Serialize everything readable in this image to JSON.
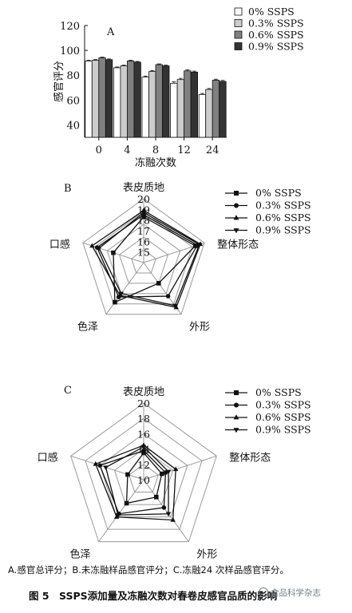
{
  "caption": "A.感官总评分；B.未冻融样品感官评分；C.冻融24 次样品感官评分。",
  "figure_title": "图 5　SSPS添加量及冻融次数对春卷皮感官品质的影响",
  "watermark": "食品科学杂志",
  "series_names": [
    "0% SSPS",
    "0.3% SSPS",
    "0.6% SSPS",
    "0.9% SSPS"
  ],
  "colors": {
    "s0": "#ffffff",
    "s1": "#cccccc",
    "s2": "#808080",
    "s3": "#333333",
    "stroke": "#111111",
    "grid": "#9a9a9a"
  },
  "chart_data": [
    {
      "panel": "A",
      "type": "bar",
      "xlabel": "冻融次数",
      "ylabel": "感官评分",
      "categories": [
        "0",
        "4",
        "8",
        "12",
        "24"
      ],
      "ylim": [
        30,
        120
      ],
      "yticks": [
        40,
        60,
        80,
        100,
        120
      ],
      "series": [
        {
          "name": "0% SSPS",
          "values": [
            91.5,
            86,
            78.5,
            73.5,
            64.5
          ],
          "errors": [
            0.6,
            0.6,
            0.8,
            1.2,
            0.8
          ]
        },
        {
          "name": "0.3% SSPS",
          "values": [
            92,
            87.5,
            83,
            76.5,
            68.5
          ],
          "errors": [
            0.6,
            0.6,
            0.8,
            1.0,
            0.8
          ]
        },
        {
          "name": "0.6% SSPS",
          "values": [
            94,
            91.5,
            88.5,
            83.5,
            76
          ],
          "errors": [
            0.6,
            0.6,
            0.6,
            0.8,
            0.8
          ]
        },
        {
          "name": "0.9% SSPS",
          "values": [
            92.5,
            90.5,
            87.5,
            82.5,
            75
          ],
          "errors": [
            0.6,
            0.6,
            0.6,
            0.8,
            0.8
          ]
        }
      ],
      "legend": "top-right"
    },
    {
      "panel": "B",
      "type": "radar",
      "axes": [
        "表皮质地",
        "整体形态",
        "外形",
        "色泽",
        "口感"
      ],
      "rmin": 14,
      "rmax": 20,
      "ticks": [
        15,
        16,
        17,
        18,
        19,
        20
      ],
      "series": [
        {
          "name": "0% SSPS",
          "marker": "square",
          "values": [
            18.3,
            19.1,
            16.4,
            18.6,
            17.0
          ]
        },
        {
          "name": "0.3% SSPS",
          "marker": "circle",
          "values": [
            18.5,
            19.3,
            17.9,
            18.0,
            18.6
          ]
        },
        {
          "name": "0.6% SSPS",
          "marker": "triangle-up",
          "values": [
            18.9,
            19.6,
            19.2,
            17.8,
            19.1
          ]
        },
        {
          "name": "0.9% SSPS",
          "marker": "triangle-down",
          "values": [
            18.7,
            19.5,
            19.0,
            17.6,
            18.4
          ]
        }
      ],
      "legend": "top-right"
    },
    {
      "panel": "C",
      "type": "radar",
      "axes": [
        "表皮质地",
        "整体形态",
        "外形",
        "色泽",
        "口感"
      ],
      "rmin": 10,
      "rmax": 20,
      "ticks": [
        10,
        12,
        14,
        16,
        18,
        20
      ],
      "series": [
        {
          "name": "0% SSPS",
          "marker": "square",
          "values": [
            13.5,
            12.5,
            12.8,
            13.8,
            12.2
          ]
        },
        {
          "name": "0.3% SSPS",
          "marker": "circle",
          "values": [
            13.8,
            13.0,
            14.5,
            15.5,
            16.0
          ]
        },
        {
          "name": "0.6% SSPS",
          "marker": "triangle-up",
          "values": [
            14.5,
            14.4,
            16.5,
            16.0,
            16.6
          ]
        },
        {
          "name": "0.9% SSPS",
          "marker": "triangle-down",
          "values": [
            14.3,
            13.4,
            15.5,
            15.7,
            15.2
          ]
        }
      ],
      "legend": "top-right"
    }
  ]
}
